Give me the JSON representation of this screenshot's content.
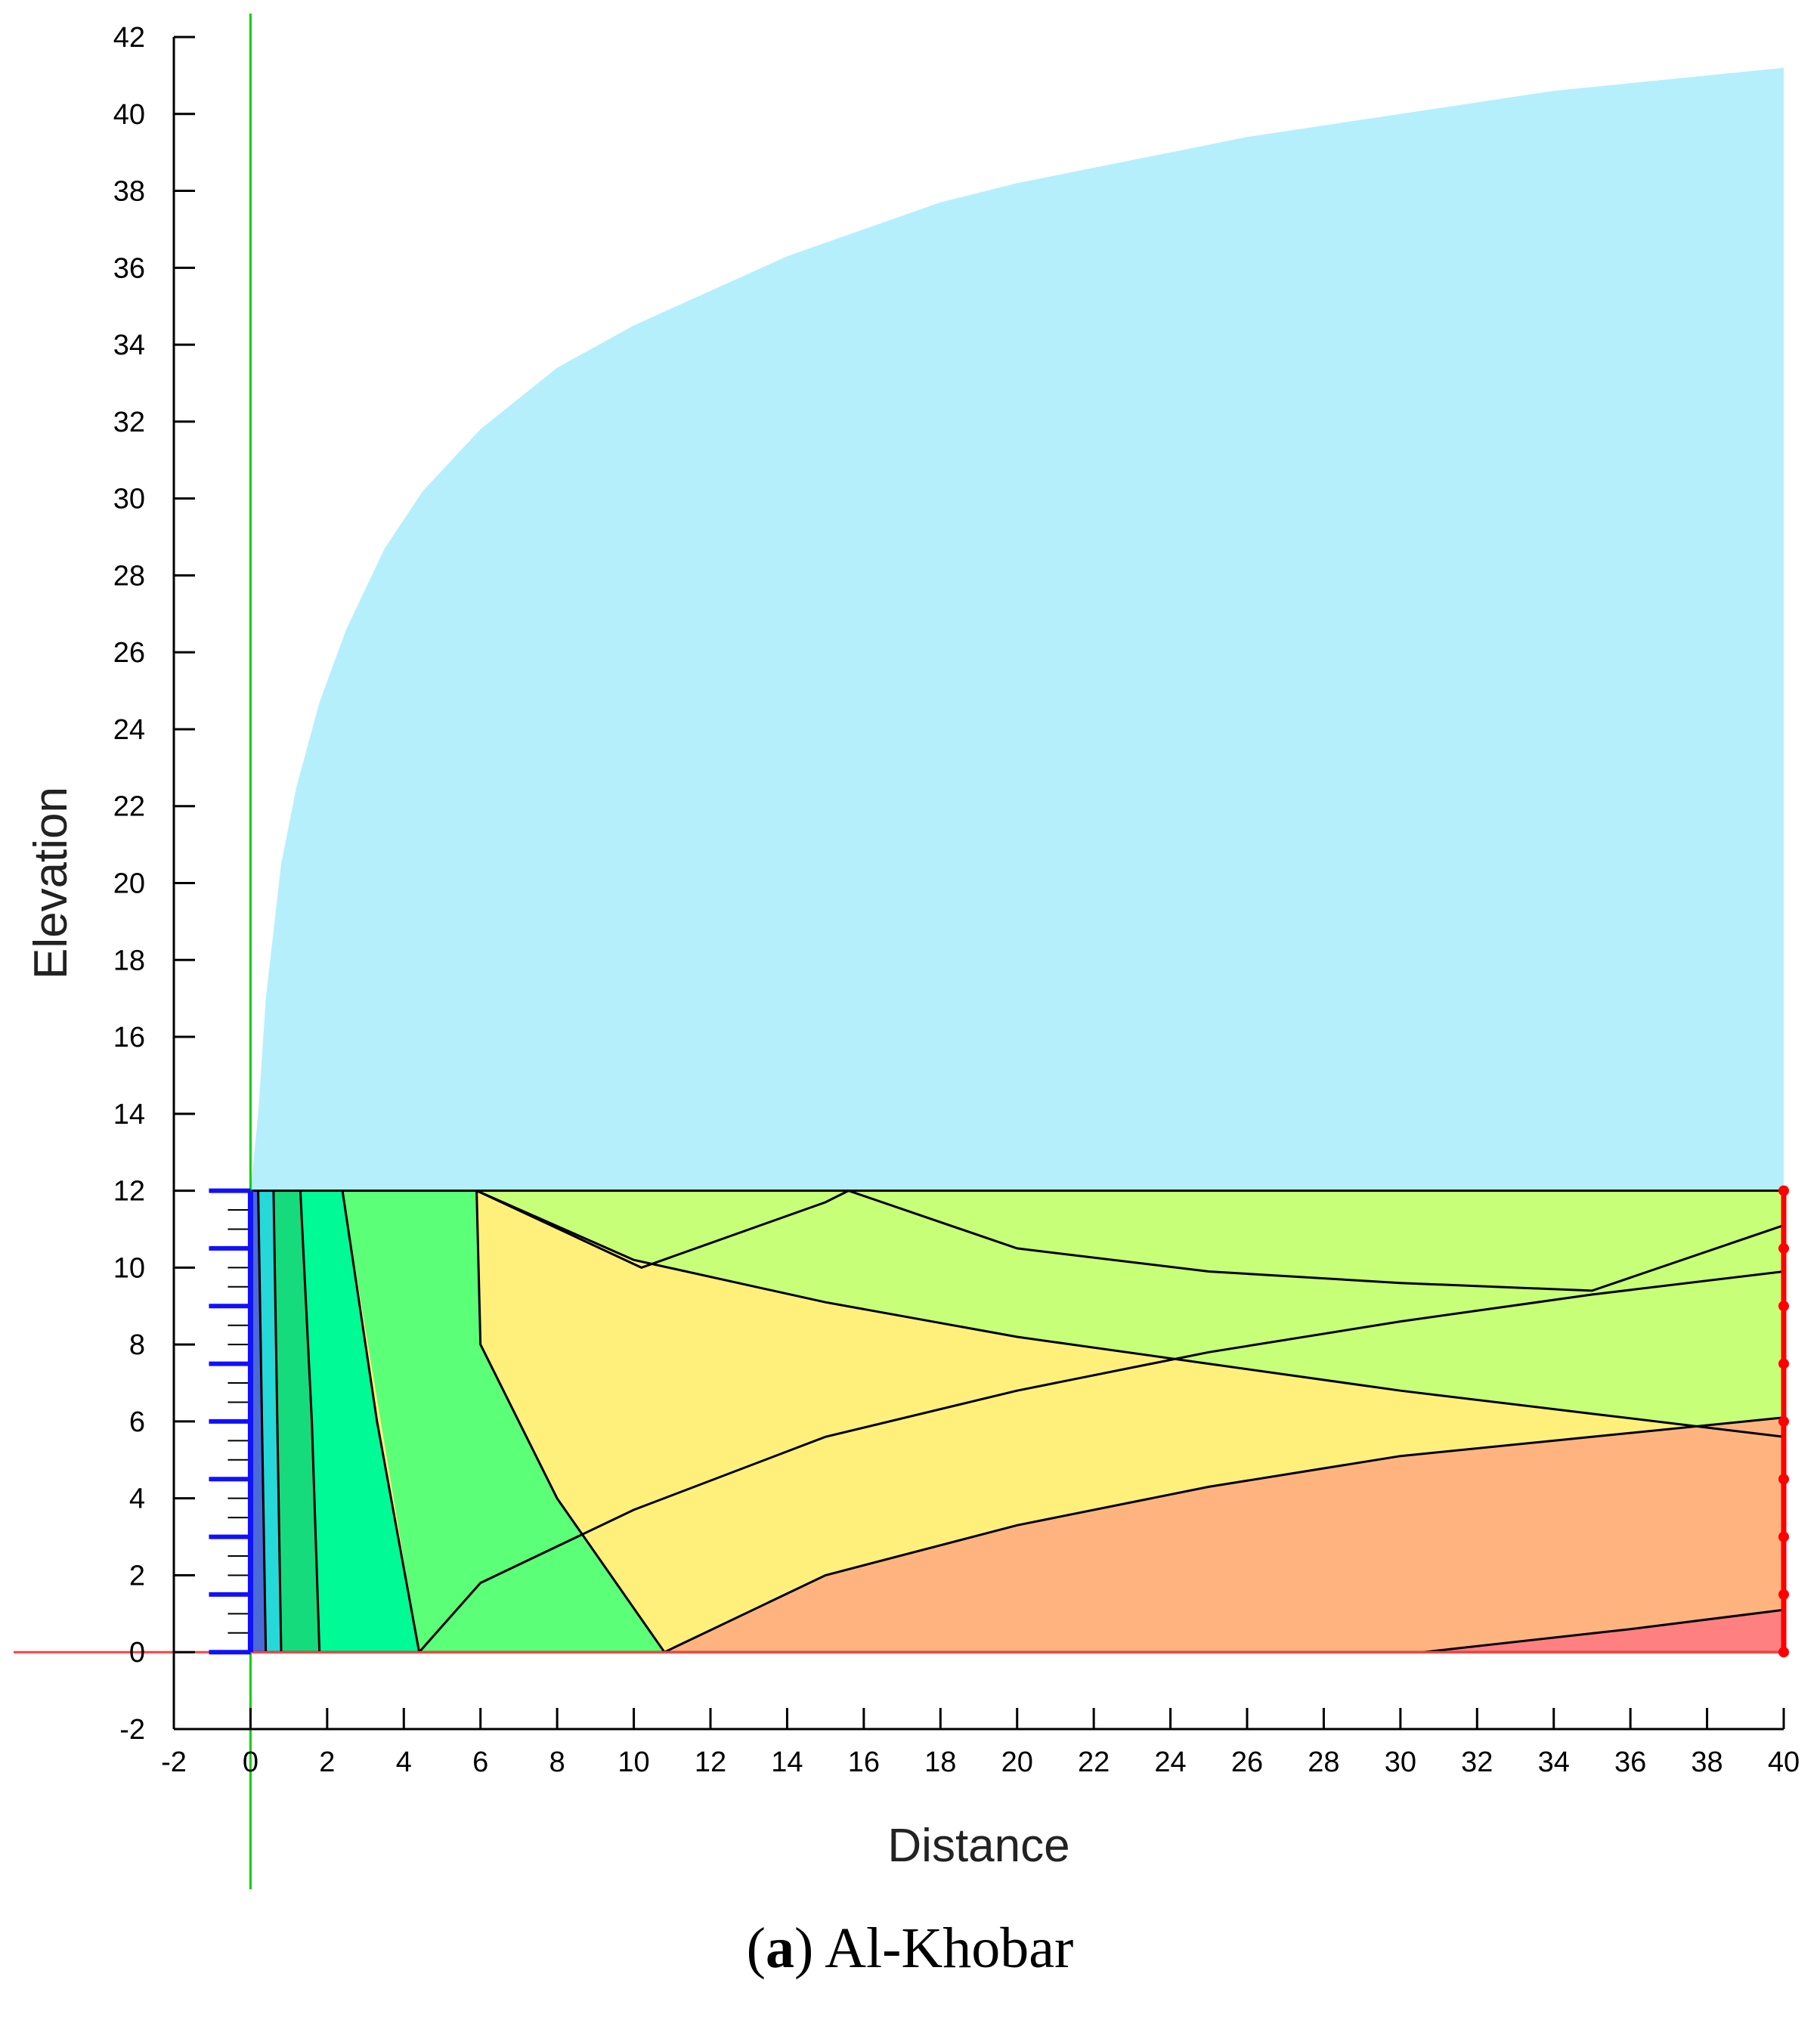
{
  "caption": {
    "tag": "a",
    "text": "Al-Khobar"
  },
  "colors": {
    "phreatic_region": "#b5effc",
    "bands": [
      "#4a6ad8",
      "#27d8d8",
      "#16db7c",
      "#00fa96",
      "#5cff78",
      "#c8ff78",
      "#fff07c",
      "#ffb480",
      "#ff8080"
    ],
    "contour_line": "#000000",
    "left_boundary": "#1010ff",
    "right_boundary": "#ff0000",
    "vertical_reference_line": "#00d000",
    "horizontal_reference_line": "#ff4040"
  },
  "chart_data": {
    "type": "area",
    "xlabel": "Distance",
    "ylabel": "Elevation",
    "xlim": [
      -2,
      40
    ],
    "ylim": [
      -2,
      42
    ],
    "xticks": [
      -2,
      0,
      2,
      4,
      6,
      8,
      10,
      12,
      14,
      16,
      18,
      20,
      22,
      24,
      26,
      28,
      30,
      32,
      34,
      36,
      38,
      40
    ],
    "yticks": [
      -2,
      0,
      2,
      4,
      6,
      8,
      10,
      12,
      14,
      16,
      18,
      20,
      22,
      24,
      26,
      28,
      30,
      32,
      34,
      36,
      38,
      40,
      42
    ],
    "grid": false,
    "domain": {
      "x": [
        0,
        40
      ],
      "y": [
        0,
        12
      ]
    },
    "phreatic_surface": [
      [
        0,
        12
      ],
      [
        0.2,
        14
      ],
      [
        0.4,
        17
      ],
      [
        0.8,
        20.5
      ],
      [
        1.2,
        22.5
      ],
      [
        1.8,
        24.7
      ],
      [
        2.5,
        26.6
      ],
      [
        3.5,
        28.7
      ],
      [
        4.5,
        30.2
      ],
      [
        6,
        31.8
      ],
      [
        8,
        33.4
      ],
      [
        10,
        34.5
      ],
      [
        12,
        35.4
      ],
      [
        14,
        36.3
      ],
      [
        16,
        37.0
      ],
      [
        18,
        37.7
      ],
      [
        20,
        38.2
      ],
      [
        22,
        38.6
      ],
      [
        24,
        39.0
      ],
      [
        26,
        39.4
      ],
      [
        28,
        39.7
      ],
      [
        30,
        40.0
      ],
      [
        32,
        40.3
      ],
      [
        34,
        40.6
      ],
      [
        36,
        40.8
      ],
      [
        38,
        41.0
      ],
      [
        40,
        41.2
      ]
    ],
    "contours": [
      [
        [
          0.4,
          0
        ],
        [
          0.3,
          6
        ],
        [
          0.2,
          12
        ]
      ],
      [
        [
          0.8,
          0
        ],
        [
          0.7,
          6
        ],
        [
          0.6,
          12
        ]
      ],
      [
        [
          1.8,
          0
        ],
        [
          1.6,
          6
        ],
        [
          1.3,
          12
        ]
      ],
      [
        [
          4.4,
          0
        ],
        [
          3.3,
          6
        ],
        [
          2.4,
          12
        ]
      ],
      [
        [
          10.8,
          0
        ],
        [
          8,
          4
        ],
        [
          6,
          8
        ],
        [
          5.9,
          12
        ]
      ],
      [
        [
          30.6,
          0
        ],
        [
          36,
          0.6
        ],
        [
          40,
          1.1
        ]
      ],
      [
        [
          10.8,
          0
        ],
        [
          15,
          2
        ],
        [
          20,
          3.3
        ],
        [
          25,
          4.3
        ],
        [
          30,
          5.1
        ],
        [
          35,
          5.6
        ],
        [
          40,
          6.1
        ]
      ],
      [
        [
          4.4,
          0
        ],
        [
          6,
          1.8
        ],
        [
          10,
          3.7
        ],
        [
          15,
          5.6
        ],
        [
          20,
          6.8
        ],
        [
          25,
          7.8
        ],
        [
          30,
          8.6
        ],
        [
          35,
          9.3
        ],
        [
          40,
          9.9
        ]
      ],
      [
        [
          5.9,
          12
        ],
        [
          10,
          10.2
        ],
        [
          15,
          9.1
        ],
        [
          20,
          8.2
        ],
        [
          25,
          7.5
        ],
        [
          30,
          6.8
        ],
        [
          35,
          6.2
        ],
        [
          40,
          5.6
        ]
      ],
      [
        [
          5.9,
          12
        ],
        [
          10.2,
          10
        ],
        [
          15,
          11.7
        ],
        [
          15.6,
          12
        ]
      ],
      [
        [
          15.6,
          12
        ],
        [
          20,
          10.5
        ],
        [
          25,
          9.9
        ],
        [
          30,
          9.6
        ],
        [
          35,
          9.4
        ],
        [
          40,
          11.1
        ]
      ]
    ]
  }
}
